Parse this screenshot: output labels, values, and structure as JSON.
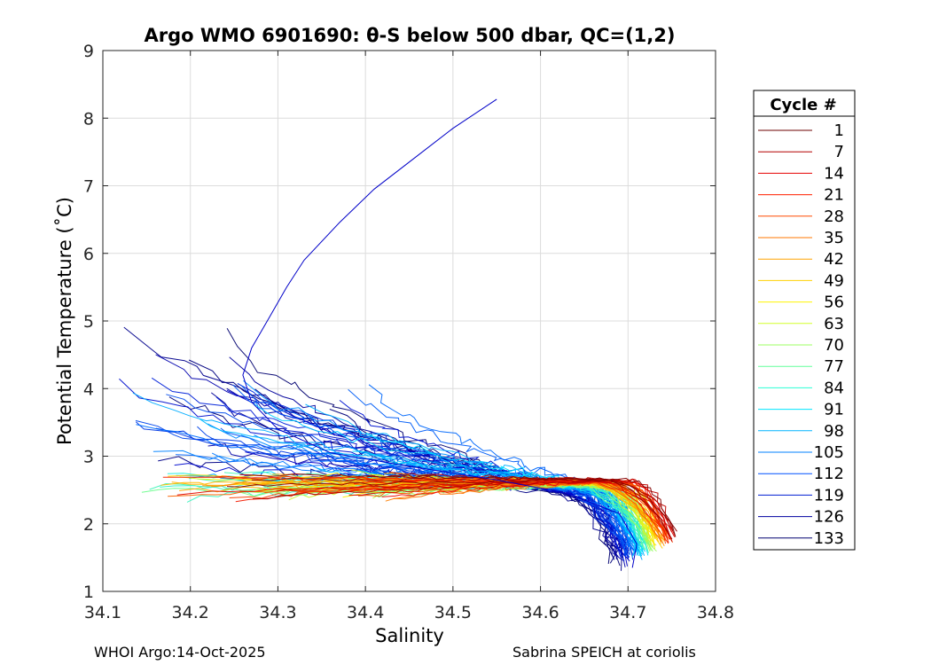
{
  "chart_data": {
    "type": "line",
    "title": "Argo WMO 6901690: θ-S below 500 dbar,  QC=(1,2)",
    "xlabel": "Salinity",
    "ylabel": "Potential Temperature (˚C)",
    "xlim": [
      34.1,
      34.8
    ],
    "ylim": [
      1,
      9
    ],
    "xticks": [
      34.1,
      34.2,
      34.3,
      34.4,
      34.5,
      34.6,
      34.7,
      34.8
    ],
    "yticks": [
      1,
      2,
      3,
      4,
      5,
      6,
      7,
      8,
      9
    ],
    "xtick_labels": [
      "34.1",
      "34.2",
      "34.3",
      "34.4",
      "34.5",
      "34.6",
      "34.7",
      "34.8"
    ],
    "ytick_labels": [
      "1",
      "2",
      "3",
      "4",
      "5",
      "6",
      "7",
      "8",
      "9"
    ],
    "grid": true,
    "legend": {
      "title": "Cycle #",
      "placement": "outside-right",
      "entries": [
        "1",
        "7",
        "14",
        "21",
        "28",
        "35",
        "42",
        "49",
        "56",
        "63",
        "70",
        "77",
        "84",
        "91",
        "98",
        "105",
        "112",
        "119",
        "126",
        "133"
      ],
      "colors": [
        "#6e0000",
        "#b20000",
        "#e60000",
        "#ff2000",
        "#ff4a00",
        "#ff7700",
        "#ffa200",
        "#ffd000",
        "#fff400",
        "#d4ff2a",
        "#9cff62",
        "#62ff9c",
        "#2affd4",
        "#00e6ff",
        "#00b4ff",
        "#0082ff",
        "#0050ff",
        "#001ed2",
        "#0000a0",
        "#000070"
      ]
    },
    "series_summary": "Theta-S profiles for cycles 1 to 133; warm red early cycles reach ~2.0-2.7 C near salinity 34.75; blue late cycles extend to fresher, warmer water up to ~8.3 C at salinity 34.55."
  },
  "footer": {
    "left": "WHOI Argo:14-Oct-2025",
    "right": "Sabrina SPEICH at coriolis"
  }
}
